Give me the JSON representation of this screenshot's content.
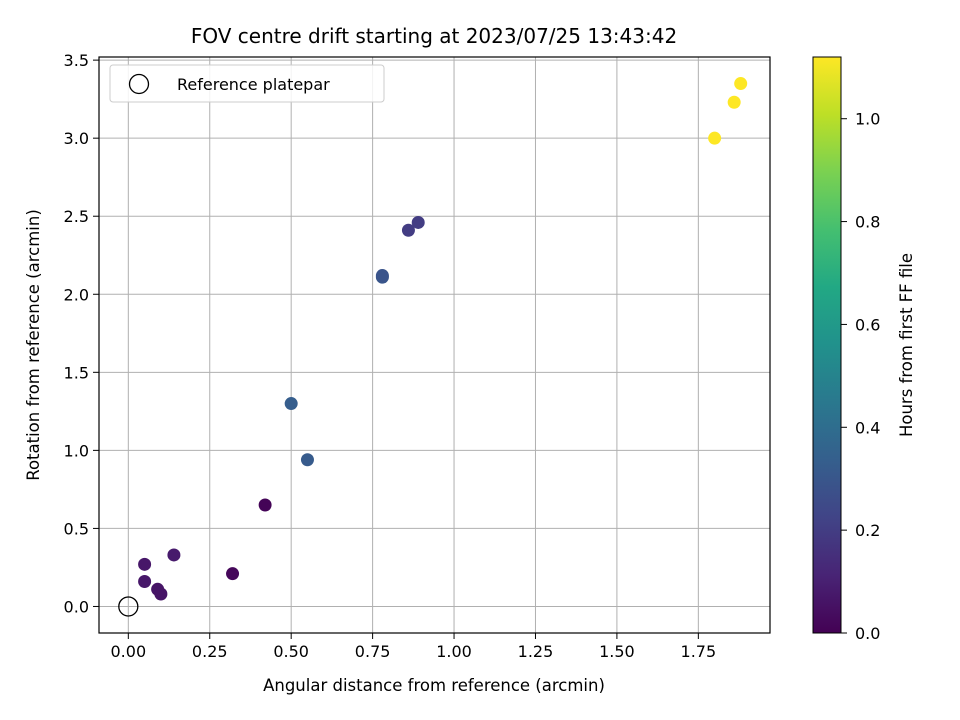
{
  "chart_data": {
    "type": "scatter",
    "title": "FOV centre drift starting at 2023/07/25 13:43:42",
    "xlabel": "Angular distance from reference (arcmin)",
    "ylabel": "Rotation from reference (arcmin)",
    "xlim": [
      -0.09,
      1.97
    ],
    "ylim": [
      -0.17,
      3.52
    ],
    "x_ticks": [
      "0.00",
      "0.25",
      "0.50",
      "0.75",
      "1.00",
      "1.25",
      "1.50",
      "1.75"
    ],
    "y_ticks": [
      "0.0",
      "0.5",
      "1.0",
      "1.5",
      "2.0",
      "2.5",
      "3.0",
      "3.5"
    ],
    "grid": true,
    "legend": {
      "position": "top-left",
      "entries": [
        "Reference platepar"
      ]
    },
    "reference_point": {
      "x": 0.0,
      "y": 0.0
    },
    "colorbar": {
      "label": "Hours from first FF file",
      "range": [
        0.0,
        1.12
      ],
      "ticks": [
        "0.0",
        "0.2",
        "0.4",
        "0.6",
        "0.8",
        "1.0"
      ],
      "colormap": "viridis"
    },
    "points": [
      {
        "x": 0.05,
        "y": 0.27,
        "c": 0.07
      },
      {
        "x": 0.05,
        "y": 0.16,
        "c": 0.07
      },
      {
        "x": 0.09,
        "y": 0.11,
        "c": 0.06
      },
      {
        "x": 0.1,
        "y": 0.08,
        "c": 0.06
      },
      {
        "x": 0.14,
        "y": 0.33,
        "c": 0.08
      },
      {
        "x": 0.32,
        "y": 0.21,
        "c": 0.02
      },
      {
        "x": 0.42,
        "y": 0.65,
        "c": 0.01
      },
      {
        "x": 0.5,
        "y": 1.3,
        "c": 0.33
      },
      {
        "x": 0.55,
        "y": 0.94,
        "c": 0.32
      },
      {
        "x": 0.78,
        "y": 2.11,
        "c": 0.3
      },
      {
        "x": 0.78,
        "y": 2.12,
        "c": 0.29
      },
      {
        "x": 0.86,
        "y": 2.41,
        "c": 0.2
      },
      {
        "x": 0.89,
        "y": 2.46,
        "c": 0.2
      },
      {
        "x": 1.8,
        "y": 3.0,
        "c": 1.12
      },
      {
        "x": 1.86,
        "y": 3.23,
        "c": 1.12
      },
      {
        "x": 1.88,
        "y": 3.35,
        "c": 1.12
      }
    ]
  }
}
